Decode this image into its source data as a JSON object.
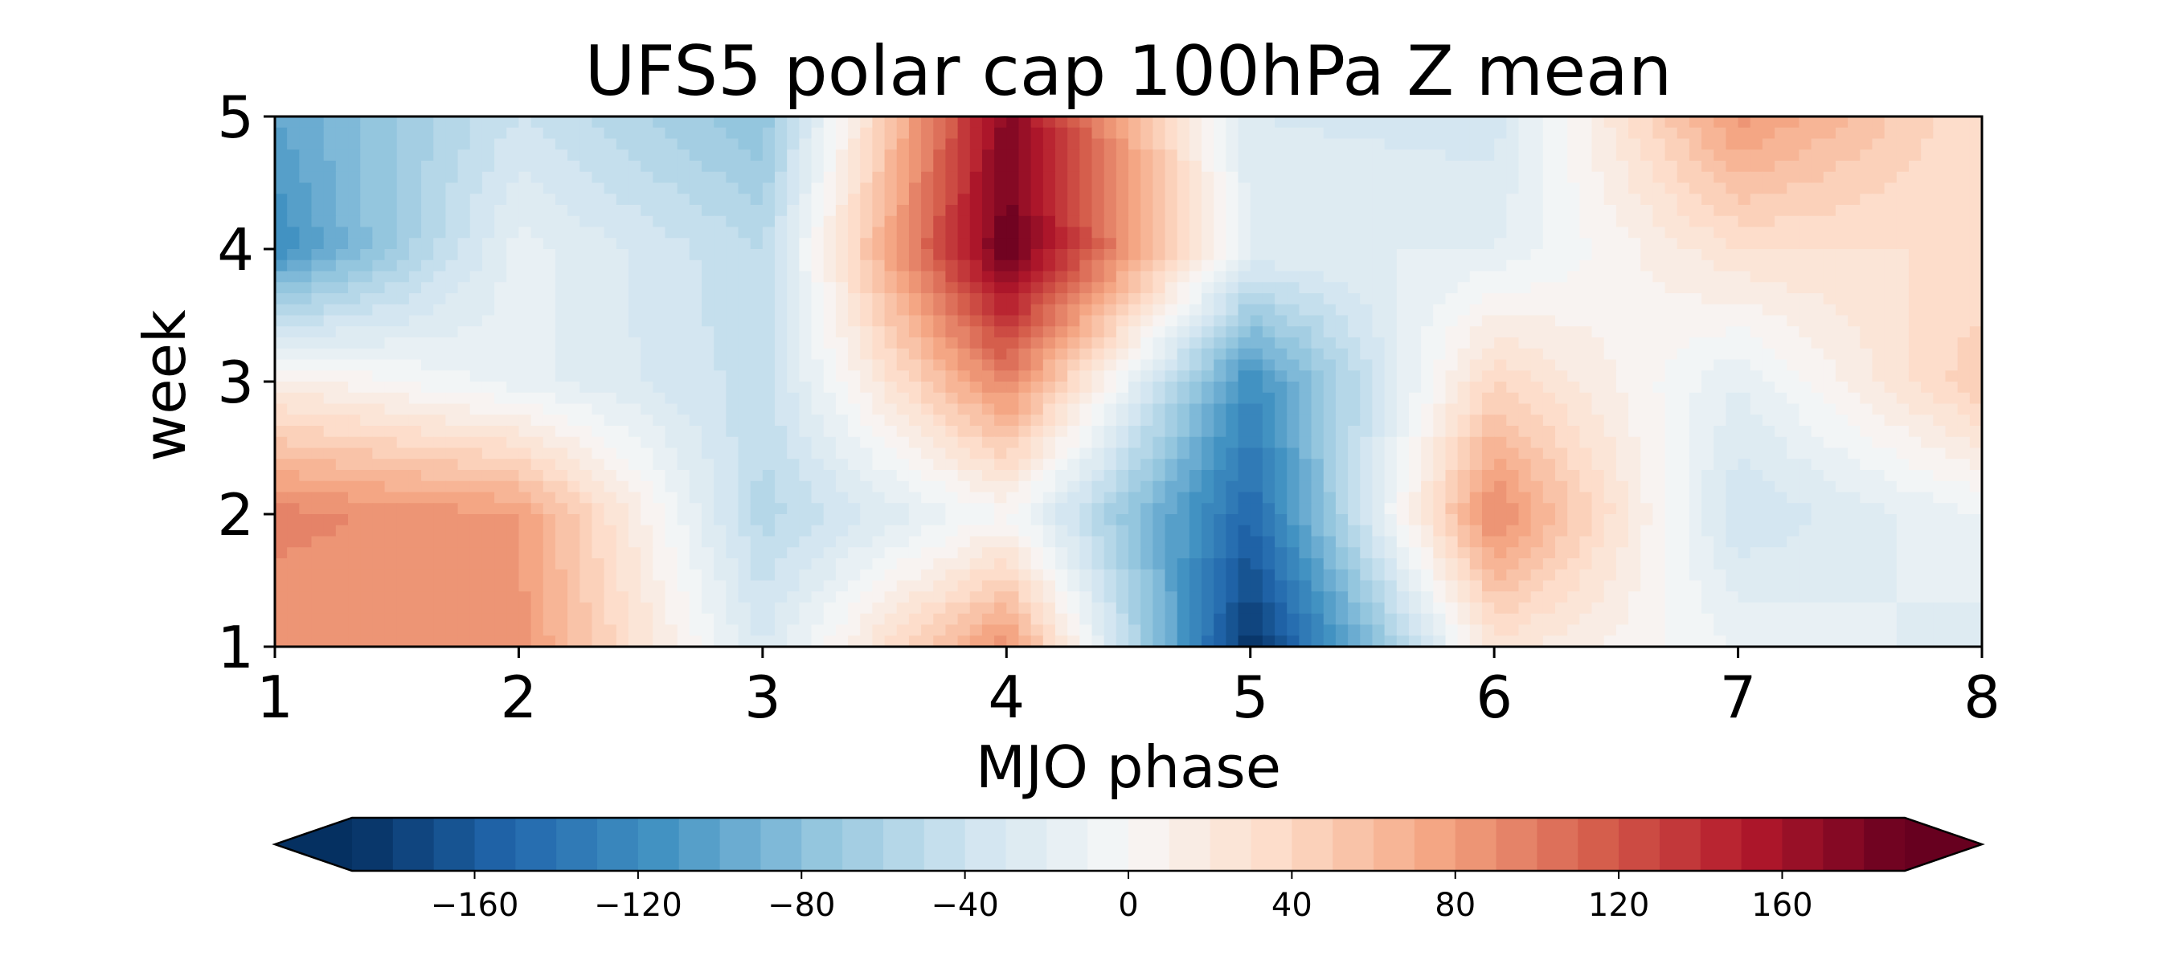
{
  "chart_data": {
    "type": "heatmap",
    "subtype": "filled-contour",
    "title": "UFS5 polar cap 100hPa Z mean",
    "xlabel": "MJO phase",
    "ylabel": "week",
    "x": [
      1,
      2,
      3,
      4,
      5,
      6,
      7,
      8
    ],
    "y": [
      1,
      2,
      3,
      4,
      5
    ],
    "xlim": [
      1,
      8
    ],
    "ylim": [
      1,
      5
    ],
    "x_ticks": [
      1,
      2,
      3,
      4,
      5,
      6,
      7,
      8
    ],
    "y_ticks": [
      1,
      2,
      3,
      4,
      5
    ],
    "z_rows_by_week": [
      [
        80,
        85,
        -30,
        90,
        -190,
        25,
        -10,
        -25
      ],
      [
        95,
        80,
        -55,
        0,
        -150,
        95,
        -40,
        -10
      ],
      [
        15,
        -15,
        -45,
        95,
        -120,
        40,
        -20,
        50
      ],
      [
        -120,
        -15,
        -50,
        190,
        -20,
        -20,
        30,
        30
      ],
      [
        -100,
        -40,
        -80,
        175,
        -30,
        -35,
        85,
        30
      ]
    ],
    "colorbar": {
      "cmap": "RdBu_r",
      "orientation": "horizontal",
      "placement": "bottom",
      "extend": "both",
      "vmin": -190,
      "vmax": 190,
      "n_levels": 38,
      "ticks": [
        -160,
        -120,
        -80,
        -40,
        0,
        40,
        80,
        120,
        160
      ],
      "tick_labels": [
        "−160",
        "−120",
        "−80",
        "−40",
        "0",
        "40",
        "80",
        "120",
        "160"
      ]
    },
    "grid": false,
    "colors": [
      "#053061",
      "#2166ac",
      "#4393c3",
      "#92c5de",
      "#d1e5f0",
      "#f7f7f7",
      "#fddbc7",
      "#f4a582",
      "#d6604d",
      "#b2182b",
      "#67001f"
    ]
  }
}
